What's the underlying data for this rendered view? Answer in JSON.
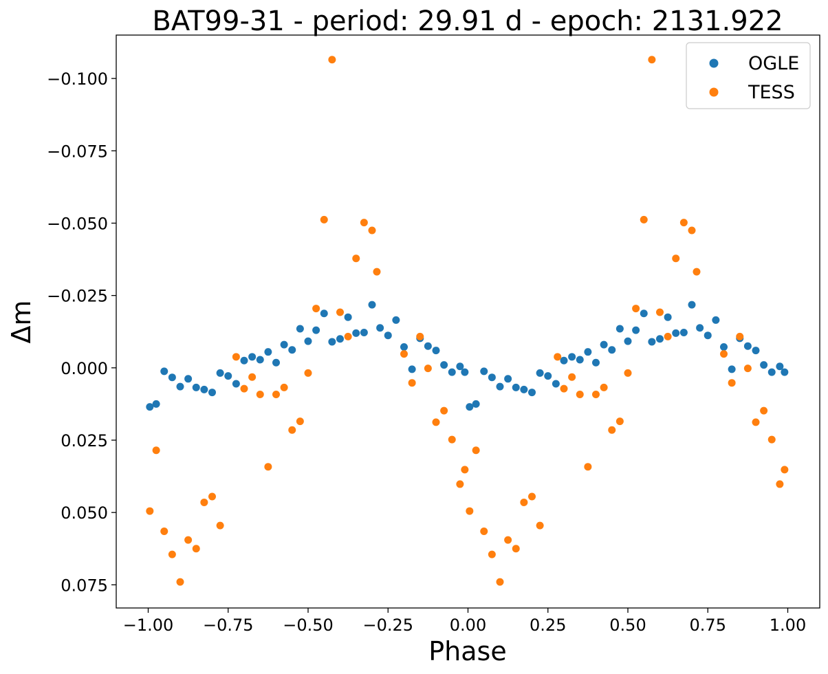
{
  "chart_data": {
    "type": "scatter",
    "title": "BAT99-31 - period: 29.91 d - epoch: 2131.922",
    "xlabel": "Phase",
    "ylabel": "Δm",
    "xlim": [
      -1.1,
      1.1
    ],
    "ylim": [
      0.083,
      -0.115
    ],
    "y_inverted": true,
    "grid": false,
    "legend_position": "top-right",
    "x_ticks": [
      -1.0,
      -0.75,
      -0.5,
      -0.25,
      0.0,
      0.25,
      0.5,
      0.75,
      1.0
    ],
    "x_tick_labels": [
      "−1.00",
      "−0.75",
      "−0.50",
      "−0.25",
      "0.00",
      "0.25",
      "0.50",
      "0.75",
      "1.00"
    ],
    "y_ticks": [
      -0.1,
      -0.075,
      -0.05,
      -0.025,
      0.0,
      0.025,
      0.05,
      0.075
    ],
    "y_tick_labels": [
      "−0.100",
      "−0.075",
      "−0.050",
      "−0.025",
      "0.000",
      "0.025",
      "0.050",
      "0.075"
    ],
    "series": [
      {
        "name": "OGLE",
        "color": "#1f77b4",
        "x": [
          -0.995,
          -0.975,
          -0.95,
          -0.925,
          -0.9,
          -0.875,
          -0.85,
          -0.825,
          -0.8,
          -0.775,
          -0.75,
          -0.725,
          -0.7,
          -0.675,
          -0.65,
          -0.625,
          -0.6,
          -0.575,
          -0.55,
          -0.525,
          -0.5,
          -0.475,
          -0.45,
          -0.425,
          -0.4,
          -0.375,
          -0.35,
          -0.325,
          -0.3,
          -0.275,
          -0.25,
          -0.225,
          -0.2,
          -0.175,
          -0.15,
          -0.125,
          -0.1,
          -0.075,
          -0.05,
          -0.025,
          -0.01,
          0.005,
          0.025,
          0.05,
          0.075,
          0.1,
          0.125,
          0.15,
          0.175,
          0.2,
          0.225,
          0.25,
          0.275,
          0.3,
          0.325,
          0.35,
          0.375,
          0.4,
          0.425,
          0.45,
          0.475,
          0.5,
          0.525,
          0.55,
          0.575,
          0.6,
          0.625,
          0.65,
          0.675,
          0.7,
          0.725,
          0.75,
          0.775,
          0.8,
          0.825,
          0.85,
          0.875,
          0.9,
          0.925,
          0.95,
          0.975,
          0.99
        ],
        "y": [
          0.0135,
          0.0125,
          0.0012,
          0.0033,
          0.0065,
          0.0038,
          0.0068,
          0.0075,
          0.0085,
          0.0018,
          0.0028,
          0.0055,
          -0.0025,
          -0.0038,
          -0.0028,
          -0.0055,
          -0.0018,
          -0.008,
          -0.0062,
          -0.0135,
          -0.0092,
          -0.013,
          -0.0188,
          -0.009,
          -0.01,
          -0.0175,
          -0.012,
          -0.0122,
          -0.0218,
          -0.0138,
          -0.0112,
          -0.0165,
          -0.0072,
          0.0005,
          -0.0102,
          -0.0075,
          -0.006,
          -0.001,
          0.0015,
          -0.0005,
          0.0015,
          0.0135,
          0.0125,
          0.0012,
          0.0033,
          0.0065,
          0.0038,
          0.0068,
          0.0075,
          0.0085,
          0.0018,
          0.0028,
          0.0055,
          -0.0025,
          -0.0038,
          -0.0028,
          -0.0055,
          -0.0018,
          -0.008,
          -0.0062,
          -0.0135,
          -0.0092,
          -0.013,
          -0.0188,
          -0.009,
          -0.01,
          -0.0175,
          -0.012,
          -0.0122,
          -0.0218,
          -0.0138,
          -0.0112,
          -0.0165,
          -0.0072,
          0.0005,
          -0.0102,
          -0.0075,
          -0.006,
          -0.001,
          0.0015,
          -0.0005,
          0.0015
        ]
      },
      {
        "name": "TESS",
        "color": "#ff7f0e",
        "x": [
          -0.995,
          -0.975,
          -0.95,
          -0.925,
          -0.9,
          -0.875,
          -0.85,
          -0.825,
          -0.8,
          -0.775,
          -0.725,
          -0.7,
          -0.675,
          -0.65,
          -0.625,
          -0.6,
          -0.575,
          -0.55,
          -0.525,
          -0.5,
          -0.475,
          -0.45,
          -0.425,
          -0.4,
          -0.375,
          -0.35,
          -0.325,
          -0.3,
          -0.285,
          -0.2,
          -0.175,
          -0.15,
          -0.125,
          -0.1,
          -0.075,
          -0.05,
          -0.025,
          -0.01,
          0.005,
          0.025,
          0.05,
          0.075,
          0.1,
          0.125,
          0.15,
          0.175,
          0.2,
          0.225,
          0.28,
          0.3,
          0.325,
          0.35,
          0.375,
          0.4,
          0.425,
          0.45,
          0.475,
          0.5,
          0.525,
          0.55,
          0.575,
          0.6,
          0.625,
          0.65,
          0.675,
          0.7,
          0.715,
          0.8,
          0.825,
          0.85,
          0.875,
          0.9,
          0.925,
          0.95,
          0.975,
          0.99
        ],
        "y": [
          0.0495,
          0.0285,
          0.0565,
          0.0645,
          0.074,
          0.0595,
          0.0625,
          0.0465,
          0.0445,
          0.0545,
          -0.0038,
          0.0072,
          0.0032,
          0.0092,
          0.0342,
          0.0092,
          0.0068,
          0.0215,
          0.0185,
          0.0018,
          -0.0205,
          -0.0512,
          -0.1065,
          -0.0192,
          -0.0108,
          -0.0378,
          -0.0502,
          -0.0475,
          -0.0332,
          -0.0048,
          0.0052,
          -0.0108,
          0.0002,
          0.0188,
          0.0148,
          0.0248,
          0.0402,
          0.0352,
          0.0495,
          0.0285,
          0.0565,
          0.0645,
          0.074,
          0.0595,
          0.0625,
          0.0465,
          0.0445,
          0.0545,
          -0.0038,
          0.0072,
          0.0032,
          0.0092,
          0.0342,
          0.0092,
          0.0068,
          0.0215,
          0.0185,
          0.0018,
          -0.0205,
          -0.0512,
          -0.1065,
          -0.0192,
          -0.0108,
          -0.0378,
          -0.0502,
          -0.0475,
          -0.0332,
          -0.0048,
          0.0052,
          -0.0108,
          0.0002,
          0.0188,
          0.0148,
          0.0248,
          0.0402,
          0.0352
        ]
      }
    ]
  }
}
